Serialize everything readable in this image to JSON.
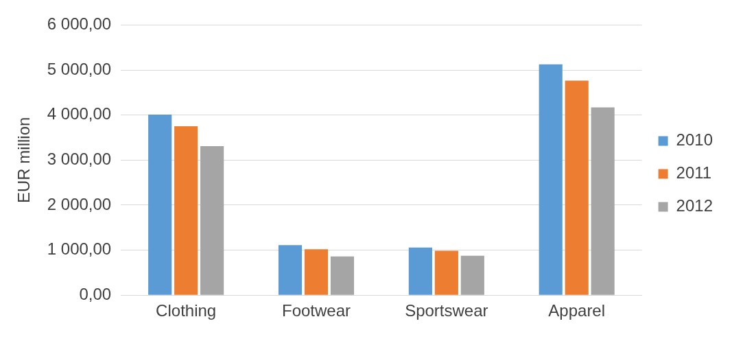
{
  "chart_data": {
    "type": "bar",
    "ylabel": "EUR million",
    "categories": [
      "Clothing",
      "Footwear",
      "Sportswear",
      "Apparel"
    ],
    "series": [
      {
        "name": "2010",
        "color": "#5b9bd5",
        "values": [
          4010,
          1110,
          1060,
          5125
        ]
      },
      {
        "name": "2011",
        "color": "#ed7d31",
        "values": [
          3750,
          1020,
          985,
          4765
        ]
      },
      {
        "name": "2012",
        "color": "#a5a5a5",
        "values": [
          3310,
          860,
          875,
          4170
        ]
      }
    ],
    "ylim": [
      0,
      6000
    ],
    "yticks": [
      {
        "value": 0,
        "label": "0,00"
      },
      {
        "value": 1000,
        "label": "1 000,00"
      },
      {
        "value": 2000,
        "label": "2 000,00"
      },
      {
        "value": 3000,
        "label": "3 000,00"
      },
      {
        "value": 4000,
        "label": "4 000,00"
      },
      {
        "value": 5000,
        "label": "5 000,00"
      },
      {
        "value": 6000,
        "label": "6 000,00"
      }
    ],
    "grid": "y",
    "legend": "right"
  }
}
